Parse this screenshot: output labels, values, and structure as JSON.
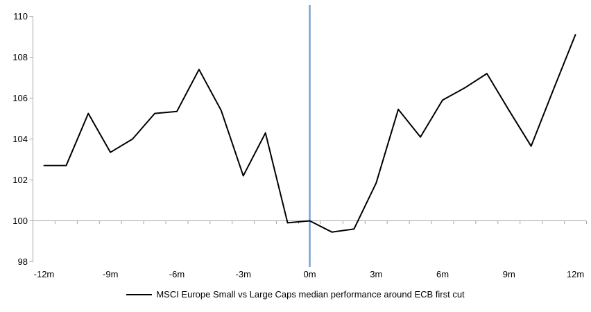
{
  "chart_data": {
    "type": "line",
    "title": "",
    "x": [
      -12,
      -11,
      -10,
      -9,
      -8,
      -7,
      -6,
      -5,
      -4,
      -3,
      -2,
      -1,
      0,
      1,
      2,
      3,
      4,
      5,
      6,
      7,
      8,
      9,
      10,
      11,
      12
    ],
    "x_tick_months": [
      -12,
      -9,
      -6,
      -3,
      0,
      3,
      6,
      9,
      12
    ],
    "x_tick_labels": [
      "-12m",
      "-9m",
      "-6m",
      "-3m",
      "0m",
      "3m",
      "6m",
      "9m",
      "12m"
    ],
    "y_ticks": [
      98,
      100,
      102,
      104,
      106,
      108,
      110
    ],
    "y_tick_labels": [
      "98",
      "100",
      "102",
      "104",
      "106",
      "108",
      "110"
    ],
    "ylim": [
      98,
      110
    ],
    "category_axis_at_value": 100,
    "event_line_at_month": 0,
    "legend_position": "bottom-center",
    "grid": "off",
    "series": [
      {
        "name": "MSCI Europe Small vs Large Caps median performance around ECB first cut",
        "color": "#000000",
        "values": [
          102.7,
          102.7,
          105.25,
          103.35,
          104.0,
          105.25,
          105.35,
          107.4,
          105.4,
          102.2,
          104.3,
          99.9,
          100.0,
          99.45,
          99.6,
          101.85,
          105.45,
          104.1,
          105.9,
          106.5,
          107.2,
          105.4,
          103.65,
          106.4,
          109.1
        ]
      }
    ],
    "colors": {
      "event_line": "#75a3d4",
      "axis": "#a6a6a6",
      "text": "#000000"
    }
  }
}
